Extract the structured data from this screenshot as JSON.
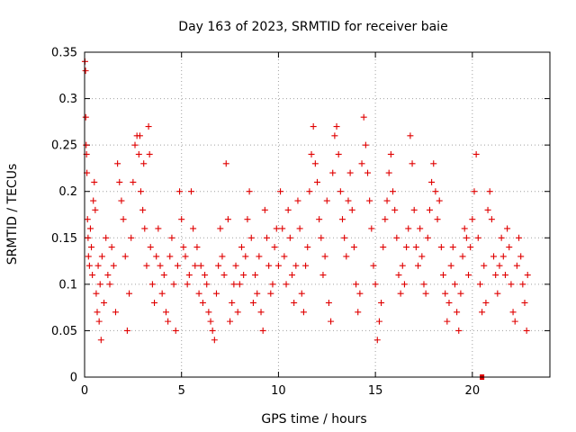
{
  "chart_data": {
    "type": "scatter",
    "title": "Day 163 of 2023, SRMTID for receiver baie",
    "xlabel": "GPS time / hours",
    "ylabel": "SRMTID / TECUs",
    "xlim": [
      0,
      24
    ],
    "ylim": [
      0,
      0.35
    ],
    "x_ticks": [
      0,
      5,
      10,
      15,
      20
    ],
    "x_tick_labels": [
      "0",
      "5",
      "10",
      "15",
      "20"
    ],
    "y_ticks": [
      0,
      0.05,
      0.1,
      0.15,
      0.2,
      0.25,
      0.3,
      0.35
    ],
    "y_tick_labels": [
      "0",
      "0.05",
      "0.1",
      "0.15",
      "0.2",
      "0.25",
      "0.3",
      "0.35"
    ],
    "grid": true,
    "marker": "plus",
    "color": "#e00000",
    "series": [
      {
        "name": "SRMTID",
        "points": [
          [
            0.02,
            0.34
          ],
          [
            0.05,
            0.33
          ],
          [
            0.06,
            0.28
          ],
          [
            0.08,
            0.25
          ],
          [
            0.1,
            0.24
          ],
          [
            0.12,
            0.22
          ],
          [
            0.15,
            0.17
          ],
          [
            0.18,
            0.15
          ],
          [
            0.2,
            0.13
          ],
          [
            0.25,
            0.12
          ],
          [
            0.3,
            0.16
          ],
          [
            0.35,
            0.14
          ],
          [
            0.4,
            0.11
          ],
          [
            0.45,
            0.19
          ],
          [
            0.5,
            0.21
          ],
          [
            0.55,
            0.18
          ],
          [
            0.6,
            0.09
          ],
          [
            0.65,
            0.07
          ],
          [
            0.7,
            0.12
          ],
          [
            0.75,
            0.06
          ],
          [
            0.8,
            0.1
          ],
          [
            0.85,
            0.04
          ],
          [
            0.9,
            0.13
          ],
          [
            1.0,
            0.08
          ],
          [
            1.1,
            0.15
          ],
          [
            1.2,
            0.11
          ],
          [
            1.3,
            0.1
          ],
          [
            1.4,
            0.14
          ],
          [
            1.5,
            0.12
          ],
          [
            1.6,
            0.07
          ],
          [
            1.7,
            0.23
          ],
          [
            1.8,
            0.21
          ],
          [
            1.9,
            0.19
          ],
          [
            2.0,
            0.17
          ],
          [
            2.1,
            0.13
          ],
          [
            2.2,
            0.05
          ],
          [
            2.3,
            0.09
          ],
          [
            2.4,
            0.15
          ],
          [
            2.5,
            0.21
          ],
          [
            2.6,
            0.25
          ],
          [
            2.7,
            0.26
          ],
          [
            2.8,
            0.24
          ],
          [
            2.85,
            0.26
          ],
          [
            2.9,
            0.2
          ],
          [
            3.0,
            0.18
          ],
          [
            3.05,
            0.23
          ],
          [
            3.1,
            0.16
          ],
          [
            3.2,
            0.12
          ],
          [
            3.3,
            0.27
          ],
          [
            3.35,
            0.24
          ],
          [
            3.4,
            0.14
          ],
          [
            3.5,
            0.1
          ],
          [
            3.6,
            0.08
          ],
          [
            3.7,
            0.13
          ],
          [
            3.8,
            0.16
          ],
          [
            3.9,
            0.12
          ],
          [
            4.0,
            0.09
          ],
          [
            4.1,
            0.11
          ],
          [
            4.2,
            0.07
          ],
          [
            4.3,
            0.06
          ],
          [
            4.4,
            0.13
          ],
          [
            4.5,
            0.15
          ],
          [
            4.6,
            0.1
          ],
          [
            4.7,
            0.05
          ],
          [
            4.8,
            0.12
          ],
          [
            4.9,
            0.2
          ],
          [
            5.0,
            0.17
          ],
          [
            5.1,
            0.14
          ],
          [
            5.2,
            0.13
          ],
          [
            5.3,
            0.1
          ],
          [
            5.4,
            0.11
          ],
          [
            5.5,
            0.2
          ],
          [
            5.6,
            0.16
          ],
          [
            5.7,
            0.12
          ],
          [
            5.8,
            0.14
          ],
          [
            5.9,
            0.09
          ],
          [
            6.0,
            0.12
          ],
          [
            6.1,
            0.08
          ],
          [
            6.2,
            0.11
          ],
          [
            6.3,
            0.1
          ],
          [
            6.4,
            0.07
          ],
          [
            6.5,
            0.06
          ],
          [
            6.6,
            0.05
          ],
          [
            6.7,
            0.04
          ],
          [
            6.8,
            0.09
          ],
          [
            6.9,
            0.12
          ],
          [
            7.0,
            0.16
          ],
          [
            7.1,
            0.13
          ],
          [
            7.2,
            0.11
          ],
          [
            7.3,
            0.23
          ],
          [
            7.4,
            0.17
          ],
          [
            7.5,
            0.06
          ],
          [
            7.6,
            0.08
          ],
          [
            7.7,
            0.1
          ],
          [
            7.8,
            0.12
          ],
          [
            7.9,
            0.07
          ],
          [
            8.0,
            0.1
          ],
          [
            8.1,
            0.14
          ],
          [
            8.2,
            0.11
          ],
          [
            8.3,
            0.13
          ],
          [
            8.4,
            0.17
          ],
          [
            8.5,
            0.2
          ],
          [
            8.6,
            0.15
          ],
          [
            8.7,
            0.08
          ],
          [
            8.8,
            0.11
          ],
          [
            8.9,
            0.09
          ],
          [
            9.0,
            0.13
          ],
          [
            9.1,
            0.07
          ],
          [
            9.2,
            0.05
          ],
          [
            9.3,
            0.18
          ],
          [
            9.4,
            0.15
          ],
          [
            9.5,
            0.12
          ],
          [
            9.6,
            0.09
          ],
          [
            9.7,
            0.1
          ],
          [
            9.8,
            0.14
          ],
          [
            9.9,
            0.16
          ],
          [
            10.0,
            0.12
          ],
          [
            10.1,
            0.2
          ],
          [
            10.2,
            0.16
          ],
          [
            10.3,
            0.13
          ],
          [
            10.4,
            0.1
          ],
          [
            10.5,
            0.18
          ],
          [
            10.6,
            0.15
          ],
          [
            10.7,
            0.11
          ],
          [
            10.8,
            0.08
          ],
          [
            10.9,
            0.12
          ],
          [
            11.0,
            0.19
          ],
          [
            11.1,
            0.16
          ],
          [
            11.2,
            0.09
          ],
          [
            11.3,
            0.07
          ],
          [
            11.4,
            0.12
          ],
          [
            11.5,
            0.14
          ],
          [
            11.6,
            0.2
          ],
          [
            11.7,
            0.24
          ],
          [
            11.8,
            0.27
          ],
          [
            11.9,
            0.23
          ],
          [
            12.0,
            0.21
          ],
          [
            12.1,
            0.17
          ],
          [
            12.2,
            0.15
          ],
          [
            12.3,
            0.11
          ],
          [
            12.4,
            0.13
          ],
          [
            12.5,
            0.19
          ],
          [
            12.6,
            0.08
          ],
          [
            12.7,
            0.06
          ],
          [
            12.8,
            0.22
          ],
          [
            12.9,
            0.26
          ],
          [
            13.0,
            0.27
          ],
          [
            13.1,
            0.24
          ],
          [
            13.2,
            0.2
          ],
          [
            13.3,
            0.17
          ],
          [
            13.4,
            0.15
          ],
          [
            13.5,
            0.13
          ],
          [
            13.6,
            0.19
          ],
          [
            13.7,
            0.22
          ],
          [
            13.8,
            0.18
          ],
          [
            13.9,
            0.14
          ],
          [
            14.0,
            0.1
          ],
          [
            14.1,
            0.07
          ],
          [
            14.2,
            0.09
          ],
          [
            14.3,
            0.23
          ],
          [
            14.4,
            0.28
          ],
          [
            14.5,
            0.25
          ],
          [
            14.6,
            0.22
          ],
          [
            14.7,
            0.19
          ],
          [
            14.8,
            0.16
          ],
          [
            14.9,
            0.12
          ],
          [
            15.0,
            0.1
          ],
          [
            15.1,
            0.04
          ],
          [
            15.2,
            0.06
          ],
          [
            15.3,
            0.08
          ],
          [
            15.4,
            0.14
          ],
          [
            15.5,
            0.17
          ],
          [
            15.6,
            0.19
          ],
          [
            15.7,
            0.22
          ],
          [
            15.8,
            0.24
          ],
          [
            15.9,
            0.2
          ],
          [
            16.0,
            0.18
          ],
          [
            16.1,
            0.15
          ],
          [
            16.2,
            0.11
          ],
          [
            16.3,
            0.09
          ],
          [
            16.4,
            0.12
          ],
          [
            16.5,
            0.1
          ],
          [
            16.6,
            0.14
          ],
          [
            16.7,
            0.16
          ],
          [
            16.8,
            0.26
          ],
          [
            16.9,
            0.23
          ],
          [
            17.0,
            0.18
          ],
          [
            17.1,
            0.14
          ],
          [
            17.2,
            0.12
          ],
          [
            17.3,
            0.16
          ],
          [
            17.4,
            0.13
          ],
          [
            17.5,
            0.1
          ],
          [
            17.6,
            0.09
          ],
          [
            17.7,
            0.15
          ],
          [
            17.8,
            0.18
          ],
          [
            17.9,
            0.21
          ],
          [
            18.0,
            0.23
          ],
          [
            18.1,
            0.2
          ],
          [
            18.2,
            0.17
          ],
          [
            18.3,
            0.19
          ],
          [
            18.4,
            0.14
          ],
          [
            18.5,
            0.11
          ],
          [
            18.6,
            0.09
          ],
          [
            18.7,
            0.06
          ],
          [
            18.8,
            0.08
          ],
          [
            18.9,
            0.12
          ],
          [
            19.0,
            0.14
          ],
          [
            19.1,
            0.1
          ],
          [
            19.2,
            0.07
          ],
          [
            19.3,
            0.05
          ],
          [
            19.4,
            0.09
          ],
          [
            19.5,
            0.13
          ],
          [
            19.6,
            0.16
          ],
          [
            19.7,
            0.15
          ],
          [
            19.8,
            0.11
          ],
          [
            19.9,
            0.14
          ],
          [
            20.0,
            0.17
          ],
          [
            20.1,
            0.2
          ],
          [
            20.2,
            0.24
          ],
          [
            20.3,
            0.15
          ],
          [
            20.4,
            0.1
          ],
          [
            20.5,
            0.07
          ],
          [
            20.6,
            0.12
          ],
          [
            20.7,
            0.08
          ],
          [
            20.8,
            0.18
          ],
          [
            20.9,
            0.2
          ],
          [
            21.0,
            0.17
          ],
          [
            21.1,
            0.13
          ],
          [
            21.2,
            0.11
          ],
          [
            21.3,
            0.09
          ],
          [
            21.4,
            0.12
          ],
          [
            21.5,
            0.15
          ],
          [
            21.6,
            0.13
          ],
          [
            21.7,
            0.11
          ],
          [
            21.8,
            0.16
          ],
          [
            21.9,
            0.14
          ],
          [
            22.0,
            0.1
          ],
          [
            22.1,
            0.07
          ],
          [
            22.2,
            0.06
          ],
          [
            22.3,
            0.12
          ],
          [
            22.4,
            0.15
          ],
          [
            22.5,
            0.13
          ],
          [
            22.6,
            0.1
          ],
          [
            22.7,
            0.08
          ],
          [
            22.8,
            0.05
          ],
          [
            22.85,
            0.11
          ]
        ]
      }
    ],
    "outlier_points": [
      [
        20.5,
        0.0
      ]
    ]
  }
}
